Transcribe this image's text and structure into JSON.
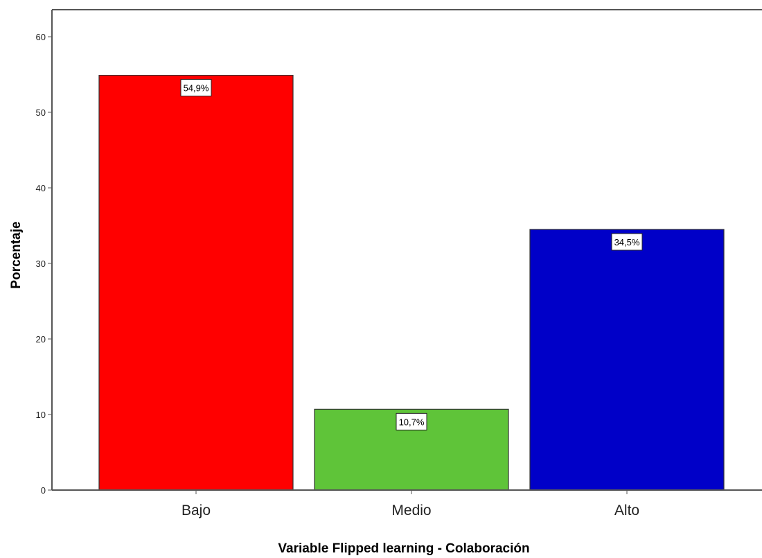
{
  "chart_data": {
    "type": "bar",
    "title": "",
    "xlabel": "Variable Flipped learning - Colaboración",
    "ylabel": "Porcentaje",
    "ylim": [
      0,
      60
    ],
    "yticks": [
      0,
      10,
      20,
      30,
      40,
      50,
      60
    ],
    "yticks_text": [
      "0",
      "10",
      "20",
      "30",
      "40",
      "50",
      "60"
    ],
    "categories": [
      "Bajo",
      "Medio",
      "Alto"
    ],
    "values": [
      54.9,
      10.7,
      34.5
    ],
    "data_labels": [
      "54,9%",
      "10,7%",
      "34,5%"
    ],
    "colors": [
      "#ff0000",
      "#5fc439",
      "#0000c8"
    ],
    "grid": false,
    "legend": "none"
  }
}
